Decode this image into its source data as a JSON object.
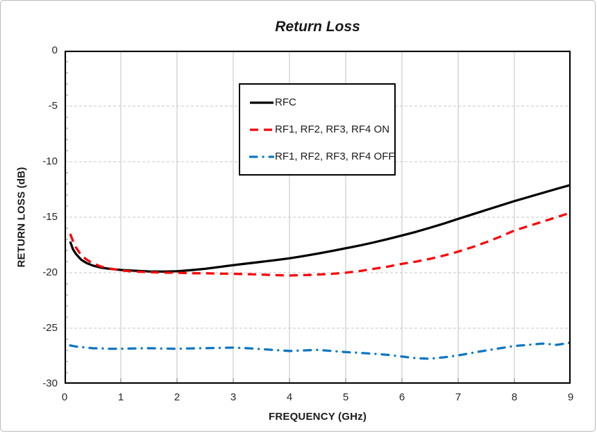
{
  "figure": {
    "title": "Return Loss",
    "background_color": "#ffffff",
    "frame_border_color": "#b9b9b9"
  },
  "chart_data": {
    "type": "line",
    "title": "Return Loss",
    "xlabel": "FREQUENCY (GHz)",
    "ylabel": "RETURN LOSS (dB)",
    "xlim": [
      0,
      9
    ],
    "ylim": [
      -30,
      0
    ],
    "x_tick_labels": [
      "0",
      "1",
      "2",
      "3",
      "4",
      "5",
      "6",
      "7",
      "8",
      "9"
    ],
    "x_ticks": [
      0,
      1,
      2,
      3,
      4,
      5,
      6,
      7,
      8,
      9
    ],
    "y_tick_labels": [
      "0",
      "-5",
      "-10",
      "-15",
      "-20",
      "-25",
      "-30"
    ],
    "y_ticks": [
      0,
      -5,
      -10,
      -15,
      -20,
      -25,
      -30
    ],
    "y_minor_tick_step": 1,
    "grid": {
      "vertical_style": "solid",
      "horizontal_style": "dashed",
      "color": "#c6c6c6",
      "minor_tick_color": "#8c8c8c",
      "plot_border_color": "#000000"
    },
    "legend": {
      "position": "upper-center",
      "border_color": "#000000",
      "background": "#ffffff"
    },
    "x": [
      0.1,
      0.15,
      0.2,
      0.3,
      0.4,
      0.5,
      0.65,
      0.8,
      1.0,
      1.25,
      1.5,
      1.75,
      2.0,
      2.25,
      2.5,
      2.75,
      3.0,
      3.25,
      3.5,
      3.75,
      4.0,
      4.25,
      4.5,
      4.75,
      5.0,
      5.25,
      5.5,
      5.75,
      6.0,
      6.25,
      6.5,
      6.75,
      7.0,
      7.25,
      7.5,
      7.75,
      8.0,
      8.25,
      8.5,
      8.75,
      9.0
    ],
    "series": [
      {
        "name": "RFC",
        "color": "#000000",
        "style": "solid",
        "values": [
          -17.2,
          -17.9,
          -18.3,
          -18.85,
          -19.15,
          -19.35,
          -19.55,
          -19.65,
          -19.75,
          -19.82,
          -19.88,
          -19.9,
          -19.87,
          -19.77,
          -19.65,
          -19.48,
          -19.32,
          -19.17,
          -19.02,
          -18.87,
          -18.7,
          -18.5,
          -18.28,
          -18.05,
          -17.8,
          -17.55,
          -17.27,
          -16.97,
          -16.65,
          -16.32,
          -15.95,
          -15.57,
          -15.15,
          -14.75,
          -14.35,
          -13.95,
          -13.55,
          -13.18,
          -12.82,
          -12.45,
          -12.1
        ]
      },
      {
        "name": "RF1, RF2, RF3, RF4 ON",
        "color": "#fb0006",
        "style": "dashed",
        "values": [
          -16.5,
          -17.15,
          -17.7,
          -18.45,
          -18.85,
          -19.15,
          -19.45,
          -19.62,
          -19.8,
          -19.9,
          -19.95,
          -20.0,
          -20.0,
          -20.05,
          -20.05,
          -20.08,
          -20.1,
          -20.13,
          -20.17,
          -20.22,
          -20.25,
          -20.22,
          -20.17,
          -20.1,
          -20.0,
          -19.85,
          -19.65,
          -19.45,
          -19.2,
          -19.0,
          -18.75,
          -18.45,
          -18.1,
          -17.7,
          -17.25,
          -16.75,
          -16.2,
          -15.8,
          -15.4,
          -15.0,
          -14.6
        ]
      },
      {
        "name": "RF1, RF2, RF3, RF4 OFF",
        "color": "#0d76c4",
        "style": "dash-dot",
        "values": [
          -26.55,
          -26.6,
          -26.65,
          -26.7,
          -26.75,
          -26.8,
          -26.82,
          -26.85,
          -26.85,
          -26.82,
          -26.8,
          -26.83,
          -26.85,
          -26.82,
          -26.8,
          -26.77,
          -26.75,
          -26.8,
          -26.88,
          -26.97,
          -27.05,
          -27.0,
          -26.95,
          -27.05,
          -27.15,
          -27.22,
          -27.3,
          -27.4,
          -27.55,
          -27.7,
          -27.75,
          -27.62,
          -27.45,
          -27.22,
          -27.0,
          -26.8,
          -26.6,
          -26.5,
          -26.38,
          -26.5,
          -26.3
        ]
      }
    ]
  }
}
